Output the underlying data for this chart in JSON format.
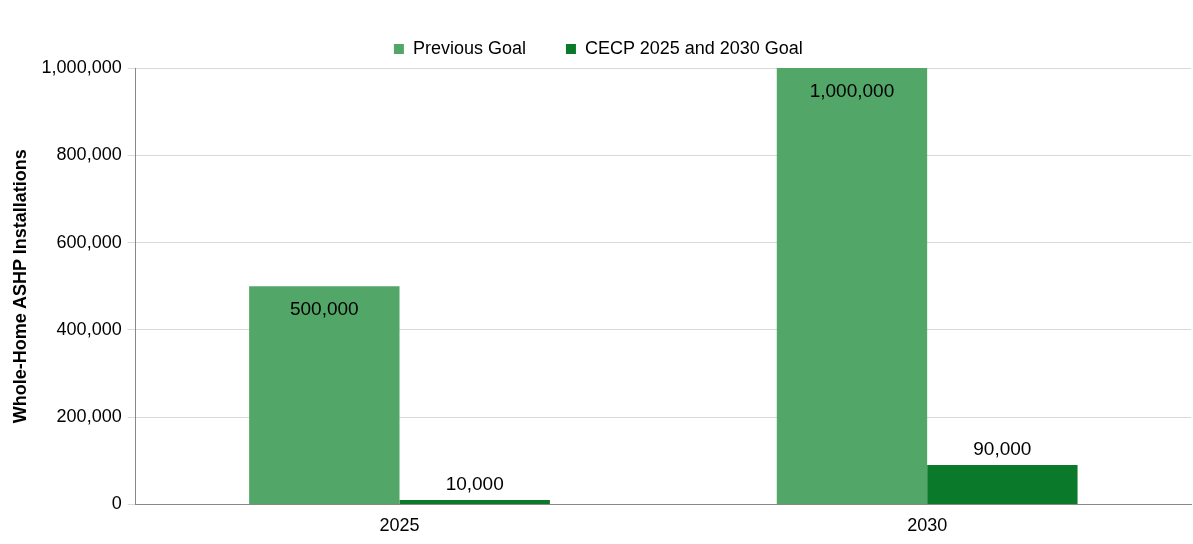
{
  "chart_data": {
    "type": "bar",
    "ylabel": "Whole-Home ASHP Installations",
    "categories": [
      "2025",
      "2030"
    ],
    "series": [
      {
        "name": "Previous Goal",
        "color": "#52a668",
        "values": [
          500000,
          1000000
        ],
        "value_labels": [
          "500,000",
          "1,000,000"
        ]
      },
      {
        "name": "CECP 2025 and 2030 Goal",
        "color": "#0a7a2a",
        "values": [
          10000,
          90000
        ],
        "value_labels": [
          "10,000",
          "90,000"
        ]
      }
    ],
    "ylim": [
      0,
      1000000
    ],
    "yticks": [
      0,
      {
        "value": 200000,
        "label": "200,000"
      },
      {
        "value": 400000,
        "label": "400,000"
      },
      {
        "value": 600000,
        "label": "600,000"
      },
      {
        "value": 800000,
        "label": "800,000"
      },
      {
        "value": 1000000,
        "label": "1,000,000"
      }
    ],
    "grid": "y",
    "legend": "top"
  }
}
